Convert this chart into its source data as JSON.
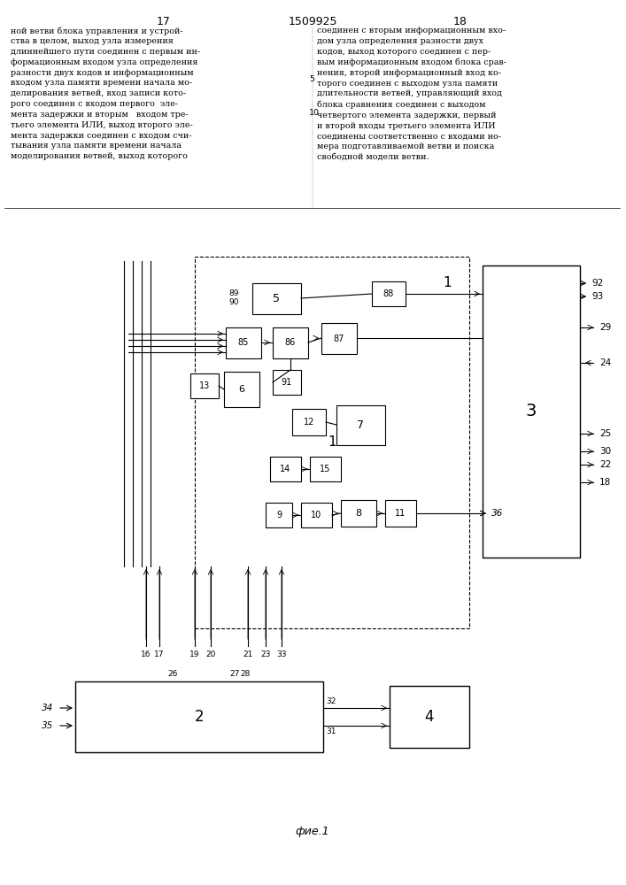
{
  "title": "1509925",
  "page_left": "17",
  "page_right": "18",
  "fig_label": "фие.1",
  "background": "#ffffff",
  "text_color": "#000000",
  "text_left": "ной ветви блока управления и устрой-\nства в целом, выход узла измерения\nдлиннейшего пути соединен с первым ин-\nформационным входом узла определения\nразности двух кодов и информационным\nвходом узла памяти времени начала мо-\nделирования ветвей, вход записи кото-\nрого соединен с входом первого  эле-\nмента задержки и вторым   входом тре-\nтьего элемента ИЛИ, выход второго эле-\nмента задержки соединен с входом счи-\nтывания узла памяти времени начала\nмоделирования ветвей, выход которого",
  "text_right": "соединен с вторым информационным вхо-\nдом узла определения разности двух\nкодов, выход которого соединен с пер-\nвым информационным входом блока срав-\nнения, второй информационный вход ко-\nторого соединен с выходом узла памяти\nдлительности ветвей, управляющий вход\nблока сравнения соединен с выходом\nчетвертого элемента задержки, первый\nи второй входы третьего элемента ИЛИ\nсоединены соответственно с входами но-\nмера подготавливаемой ветви и поиска\nсвободной модели ветви.",
  "line_number_5": "5",
  "line_number_10": "10"
}
